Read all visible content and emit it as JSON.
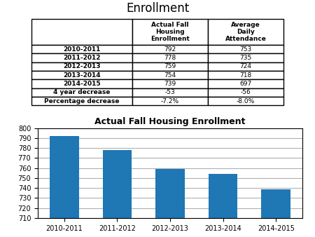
{
  "title": "Enrollment",
  "chart_data": [
    {
      "type": "table",
      "columns": [
        null,
        "Actual Fall\nHousing\nEnrollment",
        "Average\nDaily\nAttendance"
      ],
      "categories": [
        "2010-2011",
        "2011-2012",
        "2012-2013",
        "2013-2014",
        "2014-2015",
        "4 year decrease",
        "Percentage decrease"
      ],
      "series": [
        {
          "name": "Actual Fall\nHousing\nEnrollment",
          "values": [
            792,
            778,
            759,
            754,
            739,
            -53,
            -7.2
          ],
          "value_labels": [
            null,
            null,
            null,
            null,
            null,
            null,
            "-7.2%"
          ]
        },
        {
          "name": "Average\nDaily\nAttendance",
          "values": [
            753,
            735,
            724,
            718,
            697,
            -56,
            -8.0
          ],
          "value_labels": [
            null,
            null,
            null,
            null,
            null,
            null,
            "-8.0%"
          ]
        }
      ]
    },
    {
      "type": "bar",
      "title": "Actual Fall Housing Enrollment",
      "categories": [
        "2010-2011",
        "2011-2012",
        "2012-2013",
        "2013-2014",
        "2014-2015"
      ],
      "values": [
        792,
        778,
        759,
        754,
        739
      ],
      "ylim": [
        710,
        800
      ],
      "yticks": [
        710,
        720,
        730,
        740,
        750,
        760,
        770,
        780,
        790,
        800
      ],
      "grid": true
    }
  ]
}
